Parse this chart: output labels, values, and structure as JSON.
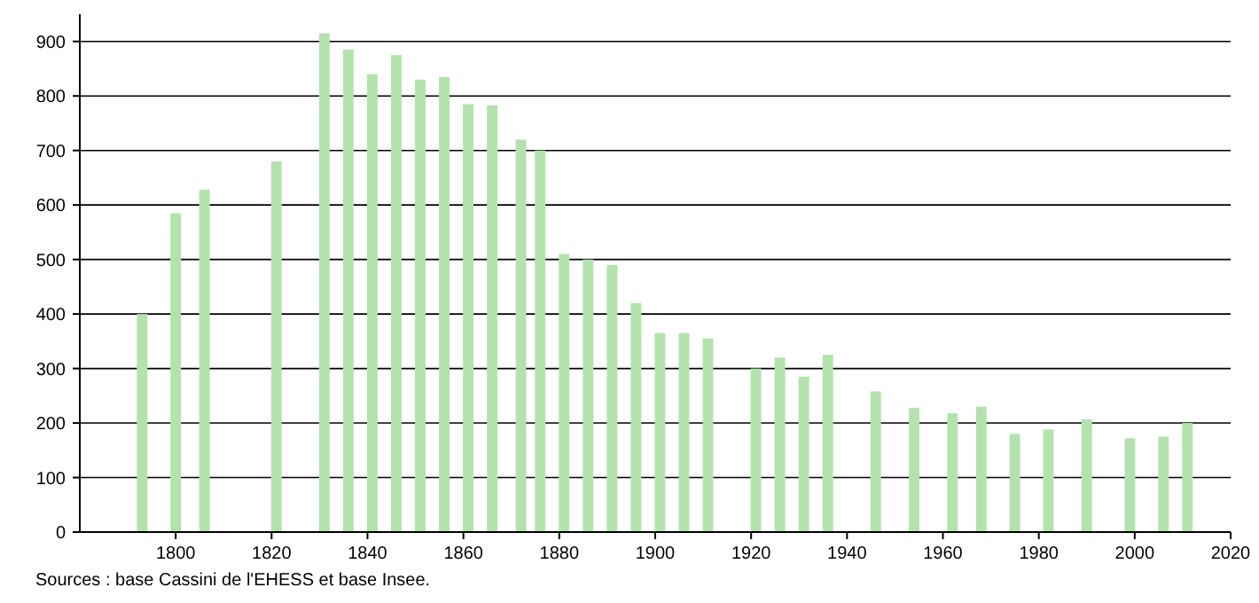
{
  "chart_data": {
    "type": "bar",
    "x": [
      1793,
      1800,
      1806,
      1821,
      1831,
      1836,
      1841,
      1846,
      1851,
      1856,
      1861,
      1866,
      1872,
      1876,
      1881,
      1886,
      1891,
      1896,
      1901,
      1906,
      1911,
      1921,
      1926,
      1931,
      1936,
      1946,
      1954,
      1962,
      1968,
      1975,
      1982,
      1990,
      1999,
      2006,
      2011
    ],
    "values": [
      400,
      585,
      628,
      680,
      915,
      885,
      840,
      875,
      830,
      835,
      785,
      783,
      720,
      700,
      510,
      500,
      490,
      420,
      365,
      365,
      355,
      300,
      320,
      285,
      325,
      258,
      228,
      218,
      230,
      180,
      188,
      207,
      172,
      175,
      200
    ],
    "color": "#b3e2ad",
    "xlim": [
      1780,
      2020
    ],
    "xticks": [
      1800,
      1820,
      1840,
      1860,
      1880,
      1900,
      1920,
      1940,
      1960,
      1980,
      2000,
      2020
    ],
    "ylim": [
      0,
      950
    ],
    "yticks": [
      0,
      100,
      200,
      300,
      400,
      500,
      600,
      700,
      800,
      900
    ],
    "grid": "y",
    "annotations": [
      "Sources : base Cassini de l'EHESS et base Insee."
    ]
  }
}
